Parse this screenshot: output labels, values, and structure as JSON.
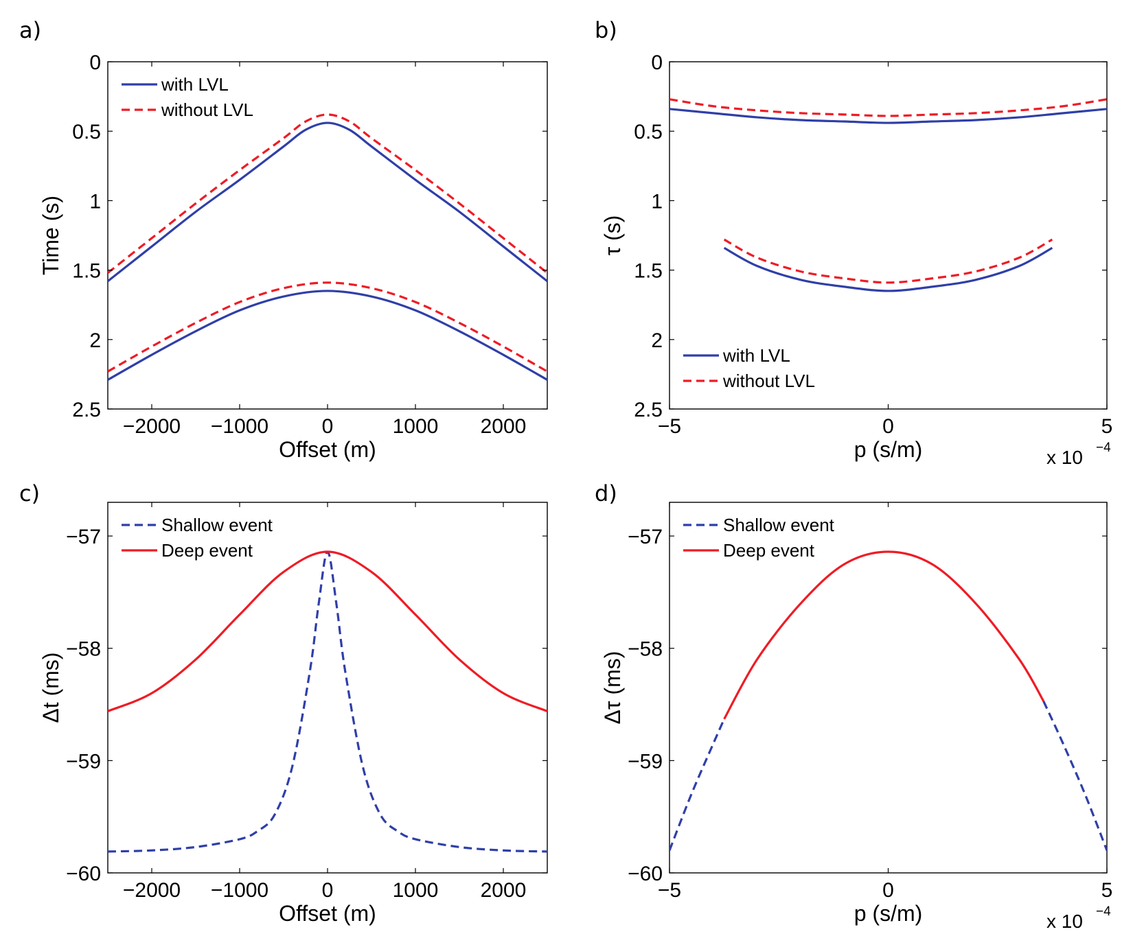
{
  "colors": {
    "blue": "#2f3fa8",
    "red": "#ee1c25"
  },
  "chart_data": [
    {
      "panel": "a)",
      "type": "line",
      "xlabel": "Offset (m)",
      "ylabel": "Time (s)",
      "xlim": [
        -2500,
        2500
      ],
      "ylim": [
        0,
        2.5
      ],
      "y_reversed": true,
      "xticks": [
        -2000,
        -1000,
        0,
        1000,
        2000
      ],
      "xtick_labels": [
        "−2000",
        "−1000",
        "0",
        "1000",
        "2000"
      ],
      "yticks": [
        0,
        0.5,
        1,
        1.5,
        2,
        2.5
      ],
      "ytick_labels": [
        "0",
        "0.5",
        "1",
        "1.5",
        "2",
        "2.5"
      ],
      "legend": {
        "position": "top-left",
        "entries": [
          "with LVL",
          "without LVL"
        ]
      },
      "series": [
        {
          "name": "with LVL",
          "event": "shallow",
          "color": "blue",
          "dash": false,
          "x": [
            -2500,
            -2000,
            -1500,
            -1000,
            -500,
            -250,
            0,
            250,
            500,
            1000,
            1500,
            2000,
            2500
          ],
          "y": [
            1.58,
            1.33,
            1.08,
            0.85,
            0.61,
            0.49,
            0.44,
            0.49,
            0.61,
            0.85,
            1.08,
            1.33,
            1.58
          ]
        },
        {
          "name": "without LVL",
          "event": "shallow",
          "color": "red",
          "dash": true,
          "x": [
            -2500,
            -2000,
            -1500,
            -1000,
            -500,
            -250,
            0,
            250,
            500,
            1000,
            1500,
            2000,
            2500
          ],
          "y": [
            1.52,
            1.27,
            1.02,
            0.78,
            0.55,
            0.43,
            0.38,
            0.43,
            0.55,
            0.78,
            1.02,
            1.27,
            1.52
          ]
        },
        {
          "name": "with LVL",
          "event": "deep",
          "color": "blue",
          "dash": false,
          "x": [
            -2500,
            -2000,
            -1500,
            -1000,
            -500,
            0,
            500,
            1000,
            1500,
            2000,
            2500
          ],
          "y": [
            2.29,
            2.11,
            1.94,
            1.79,
            1.69,
            1.65,
            1.69,
            1.79,
            1.94,
            2.11,
            2.29
          ]
        },
        {
          "name": "without LVL",
          "event": "deep",
          "color": "red",
          "dash": true,
          "x": [
            -2500,
            -2000,
            -1500,
            -1000,
            -500,
            0,
            500,
            1000,
            1500,
            2000,
            2500
          ],
          "y": [
            2.23,
            2.05,
            1.88,
            1.73,
            1.63,
            1.59,
            1.63,
            1.73,
            1.88,
            2.05,
            2.23
          ]
        }
      ]
    },
    {
      "panel": "b)",
      "type": "line",
      "xlabel": "p (s/m)",
      "ylabel": "τ (s)",
      "xlim": [
        -5,
        5
      ],
      "ylim": [
        0,
        2.5
      ],
      "y_reversed": true,
      "x_multiplier": "x 10",
      "x_multiplier_exp": "−4",
      "xticks": [
        -5,
        0,
        5
      ],
      "xtick_labels": [
        "−5",
        "0",
        "5"
      ],
      "yticks": [
        0,
        0.5,
        1,
        1.5,
        2,
        2.5
      ],
      "ytick_labels": [
        "0",
        "0.5",
        "1",
        "1.5",
        "2",
        "2.5"
      ],
      "legend": {
        "position": "bottom-left",
        "entries": [
          "with LVL",
          "without LVL"
        ]
      },
      "series": [
        {
          "name": "with LVL",
          "event": "shallow",
          "color": "blue",
          "dash": false,
          "x": [
            -5,
            -4,
            -3,
            -2,
            -1,
            0,
            1,
            2,
            3,
            4,
            5
          ],
          "y": [
            0.34,
            0.37,
            0.4,
            0.42,
            0.43,
            0.44,
            0.43,
            0.42,
            0.4,
            0.37,
            0.34
          ]
        },
        {
          "name": "without LVL",
          "event": "shallow",
          "color": "red",
          "dash": true,
          "x": [
            -5,
            -4,
            -3,
            -2,
            -1,
            0,
            1,
            2,
            3,
            4,
            5
          ],
          "y": [
            0.27,
            0.32,
            0.35,
            0.37,
            0.38,
            0.39,
            0.38,
            0.37,
            0.35,
            0.32,
            0.27
          ]
        },
        {
          "name": "with LVL",
          "event": "deep",
          "color": "blue",
          "dash": false,
          "x": [
            -3.75,
            -3,
            -2,
            -1,
            0,
            1,
            2,
            3,
            3.75
          ],
          "y": [
            1.34,
            1.47,
            1.57,
            1.62,
            1.65,
            1.62,
            1.57,
            1.47,
            1.34
          ]
        },
        {
          "name": "without LVL",
          "event": "deep",
          "color": "red",
          "dash": true,
          "x": [
            -3.75,
            -3,
            -2,
            -1,
            0,
            1,
            2,
            3,
            3.75
          ],
          "y": [
            1.28,
            1.41,
            1.51,
            1.56,
            1.59,
            1.56,
            1.51,
            1.41,
            1.28
          ]
        }
      ]
    },
    {
      "panel": "c)",
      "type": "line",
      "xlabel": "Offset (m)",
      "ylabel": "Δt (ms)",
      "xlim": [
        -2500,
        2500
      ],
      "ylim": [
        -60,
        -56.7
      ],
      "y_reversed": false,
      "xticks": [
        -2000,
        -1000,
        0,
        1000,
        2000
      ],
      "xtick_labels": [
        "−2000",
        "−1000",
        "0",
        "1000",
        "2000"
      ],
      "yticks": [
        -57,
        -58,
        -59,
        -60
      ],
      "ytick_labels": [
        "−57",
        "−58",
        "−59",
        "−60"
      ],
      "legend": {
        "position": "top-left",
        "entries": [
          "Shallow event",
          "Deep event"
        ]
      },
      "series": [
        {
          "name": "Shallow event",
          "color": "blue",
          "dash": true,
          "x": [
            -2500,
            -2000,
            -1500,
            -1000,
            -800,
            -600,
            -400,
            -200,
            -100,
            0,
            100,
            200,
            400,
            600,
            800,
            1000,
            1500,
            2000,
            2500
          ],
          "y": [
            -59.81,
            -59.8,
            -59.77,
            -59.7,
            -59.63,
            -59.48,
            -59.05,
            -58.2,
            -57.6,
            -57.14,
            -57.6,
            -58.2,
            -59.05,
            -59.48,
            -59.63,
            -59.7,
            -59.77,
            -59.8,
            -59.81
          ]
        },
        {
          "name": "Deep event",
          "color": "red",
          "dash": false,
          "x": [
            -2500,
            -2000,
            -1500,
            -1000,
            -500,
            0,
            500,
            1000,
            1500,
            2000,
            2500
          ],
          "y": [
            -58.56,
            -58.4,
            -58.1,
            -57.7,
            -57.32,
            -57.14,
            -57.32,
            -57.7,
            -58.1,
            -58.4,
            -58.56
          ]
        }
      ]
    },
    {
      "panel": "d)",
      "type": "line",
      "xlabel": "p (s/m)",
      "ylabel": "Δτ (ms)",
      "xlim": [
        -5,
        5
      ],
      "ylim": [
        -60,
        -56.7
      ],
      "y_reversed": false,
      "x_multiplier": "x 10",
      "x_multiplier_exp": "−4",
      "xticks": [
        -5,
        0,
        5
      ],
      "xtick_labels": [
        "−5",
        "0",
        "5"
      ],
      "yticks": [
        -57,
        -58,
        -59,
        -60
      ],
      "ytick_labels": [
        "−57",
        "−58",
        "−59",
        "−60"
      ],
      "legend": {
        "position": "top-left",
        "entries": [
          "Shallow event",
          "Deep event"
        ]
      },
      "series": [
        {
          "name": "Shallow event",
          "segment": "left",
          "color": "blue",
          "dash": true,
          "x": [
            -5,
            -4.5,
            -4,
            -3.75
          ],
          "y": [
            -59.8,
            -59.3,
            -58.85,
            -58.63
          ]
        },
        {
          "name": "Shallow event",
          "segment": "right",
          "color": "blue",
          "dash": true,
          "x": [
            3.55,
            4,
            4.5,
            5
          ],
          "y": [
            -58.47,
            -58.85,
            -59.3,
            -59.8
          ]
        },
        {
          "name": "Deep event",
          "color": "red",
          "dash": false,
          "x": [
            -3.75,
            -3,
            -2,
            -1,
            0,
            1,
            2,
            3,
            3.55
          ],
          "y": [
            -58.63,
            -58.1,
            -57.6,
            -57.25,
            -57.14,
            -57.25,
            -57.6,
            -58.1,
            -58.47
          ]
        }
      ]
    }
  ]
}
